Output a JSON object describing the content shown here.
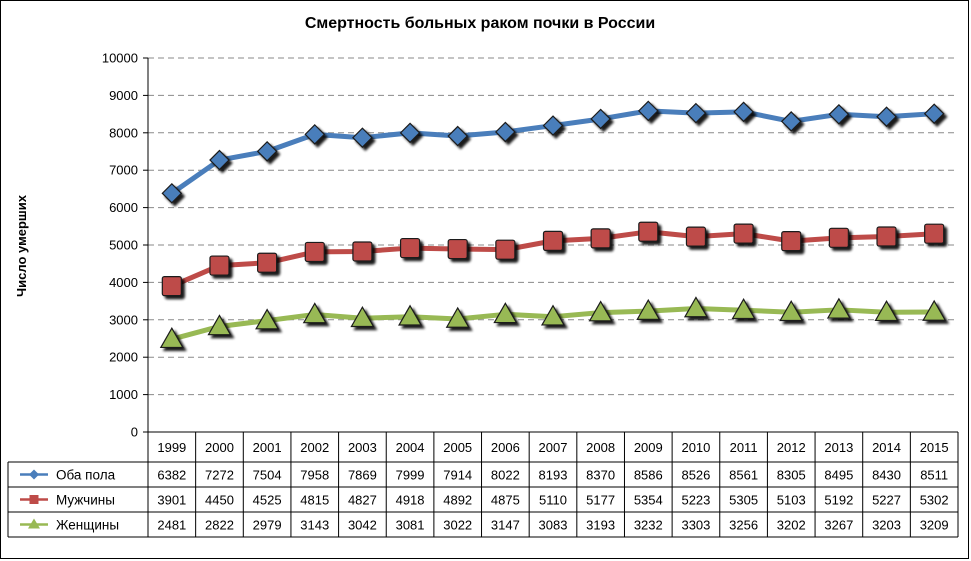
{
  "chart_data": {
    "type": "line",
    "title": "Смертность больных раком почки в России",
    "xlabel": "",
    "ylabel": "Число умерших",
    "ylim": [
      0,
      10000
    ],
    "yticks": [
      0,
      1000,
      2000,
      3000,
      4000,
      5000,
      6000,
      7000,
      8000,
      9000,
      10000
    ],
    "grid": true,
    "legend": "data-table-left",
    "categories": [
      "1999",
      "2000",
      "2001",
      "2002",
      "2003",
      "2004",
      "2005",
      "2006",
      "2007",
      "2008",
      "2009",
      "2010",
      "2011",
      "2012",
      "2013",
      "2014",
      "2015"
    ],
    "series": [
      {
        "name": "Оба пола",
        "color": "#4a7ebb",
        "marker": "diamond",
        "values": [
          6382,
          7272,
          7504,
          7958,
          7869,
          7999,
          7914,
          8022,
          8193,
          8370,
          8586,
          8526,
          8561,
          8305,
          8495,
          8430,
          8511
        ]
      },
      {
        "name": "Мужчины",
        "color": "#be4b48",
        "marker": "square",
        "values": [
          3901,
          4450,
          4525,
          4815,
          4827,
          4918,
          4892,
          4875,
          5110,
          5177,
          5354,
          5223,
          5305,
          5103,
          5192,
          5227,
          5302
        ]
      },
      {
        "name": "Женщины",
        "color": "#98b954",
        "marker": "triangle",
        "values": [
          2481,
          2822,
          2979,
          3143,
          3042,
          3081,
          3022,
          3147,
          3083,
          3193,
          3232,
          3303,
          3256,
          3202,
          3267,
          3203,
          3209
        ]
      }
    ]
  }
}
